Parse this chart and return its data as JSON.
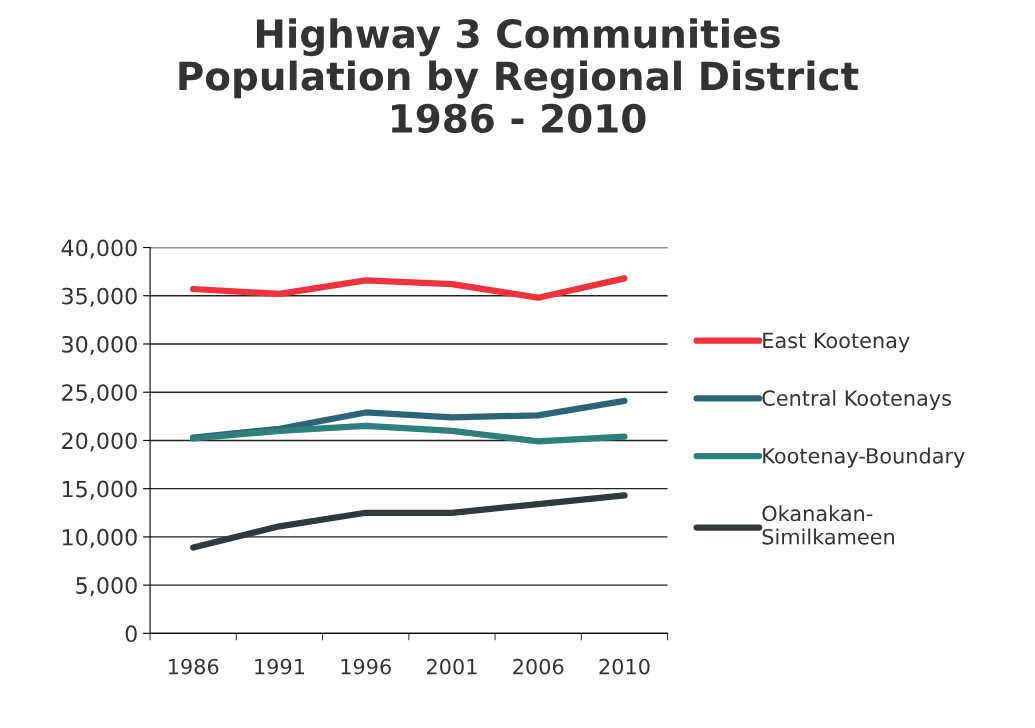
{
  "chart_data": {
    "type": "line",
    "title": "Highway 3 Communities\nPopulation by Regional District\n1986 - 2010",
    "categories": [
      "1986",
      "1991",
      "1996",
      "2001",
      "2006",
      "2010"
    ],
    "series": [
      {
        "name": "East Kootenay",
        "color": "#f0323c",
        "values": [
          35700,
          35200,
          36600,
          36200,
          34800,
          36800
        ]
      },
      {
        "name": "Central Kootenays",
        "color": "#2a6677",
        "values": [
          20300,
          21200,
          22900,
          22400,
          22600,
          24100
        ]
      },
      {
        "name": "Kootenay-Boundary",
        "color": "#2f7f7c",
        "values": [
          20200,
          21000,
          21500,
          21000,
          19900,
          20400
        ]
      },
      {
        "name": "Okanakan-\nSimilkameen",
        "color": "#33383a",
        "values": [
          8900,
          11100,
          12500,
          12500,
          13400,
          14300
        ]
      }
    ],
    "ylim": [
      0,
      40000
    ],
    "yticks": [
      {
        "value": 0,
        "label": "0"
      },
      {
        "value": 5000,
        "label": "5,000"
      },
      {
        "value": 10000,
        "label": "10,000"
      },
      {
        "value": 15000,
        "label": "15,000"
      },
      {
        "value": 20000,
        "label": "20,000"
      },
      {
        "value": 25000,
        "label": "25,000"
      },
      {
        "value": 30000,
        "label": "30,000"
      },
      {
        "value": 35000,
        "label": "35,000"
      },
      {
        "value": 40000,
        "label": "40,000"
      }
    ],
    "grid": "y",
    "legend": "right",
    "marker": "none",
    "line_style": "solid"
  }
}
